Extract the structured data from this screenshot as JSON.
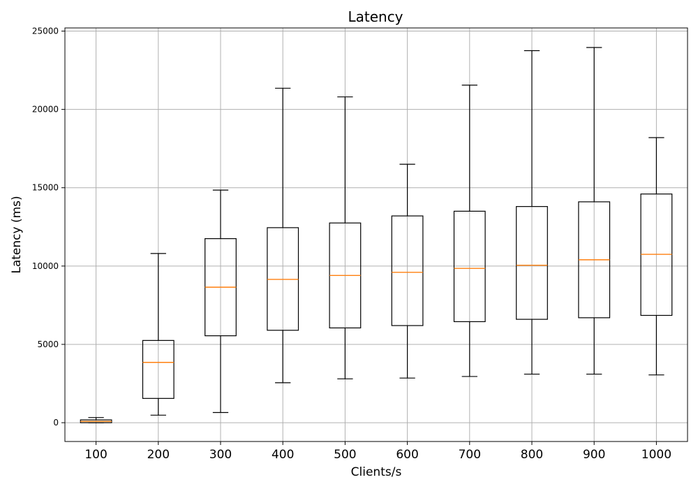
{
  "chart_data": {
    "type": "box",
    "title": "Latency",
    "xlabel": "Clients/s",
    "ylabel": "Latency (ms)",
    "ylim": [
      -1200,
      25200
    ],
    "yticks": [
      0,
      5000,
      10000,
      15000,
      20000,
      25000
    ],
    "grid": true,
    "categories": [
      "100",
      "200",
      "300",
      "400",
      "500",
      "600",
      "700",
      "800",
      "900",
      "1000"
    ],
    "boxes": [
      {
        "whisker_low": 0,
        "q1": 0,
        "median": 80,
        "q3": 180,
        "whisker_high": 330
      },
      {
        "whisker_low": 480,
        "q1": 1550,
        "median": 3850,
        "q3": 5250,
        "whisker_high": 10800
      },
      {
        "whisker_low": 650,
        "q1": 5550,
        "median": 8650,
        "q3": 11750,
        "whisker_high": 14850
      },
      {
        "whisker_low": 2550,
        "q1": 5900,
        "median": 9150,
        "q3": 12450,
        "whisker_high": 21350
      },
      {
        "whisker_low": 2800,
        "q1": 6050,
        "median": 9400,
        "q3": 12750,
        "whisker_high": 20800
      },
      {
        "whisker_low": 2850,
        "q1": 6200,
        "median": 9600,
        "q3": 13200,
        "whisker_high": 16500
      },
      {
        "whisker_low": 2950,
        "q1": 6450,
        "median": 9850,
        "q3": 13500,
        "whisker_high": 21550
      },
      {
        "whisker_low": 3100,
        "q1": 6600,
        "median": 10050,
        "q3": 13800,
        "whisker_high": 23750
      },
      {
        "whisker_low": 3100,
        "q1": 6700,
        "median": 10400,
        "q3": 14100,
        "whisker_high": 23950
      },
      {
        "whisker_low": 3050,
        "q1": 6850,
        "median": 10750,
        "q3": 14600,
        "whisker_high": 18200
      }
    ],
    "colors": {
      "box": "#000000",
      "median": "#ff7f0e",
      "grid": "#b0b0b0"
    }
  }
}
